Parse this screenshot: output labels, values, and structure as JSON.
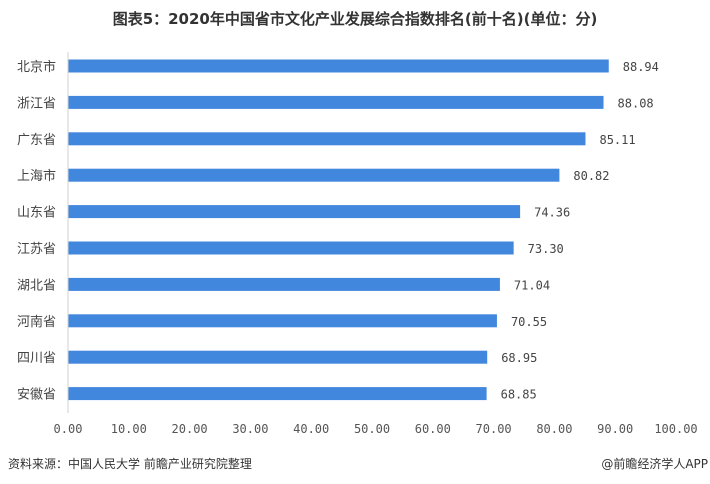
{
  "chart_data": {
    "type": "bar",
    "orientation": "horizontal",
    "title": "图表5：2020年中国省市文化产业发展综合指数排名(前十名)(单位：分)",
    "categories": [
      "北京市",
      "浙江省",
      "广东省",
      "上海市",
      "山东省",
      "江苏省",
      "湖北省",
      "河南省",
      "四川省",
      "安徽省"
    ],
    "values": [
      88.94,
      88.08,
      85.11,
      80.82,
      74.36,
      73.3,
      71.04,
      70.55,
      68.95,
      68.85
    ],
    "value_labels": [
      "88.94",
      "88.08",
      "85.11",
      "80.82",
      "74.36",
      "73.30",
      "71.04",
      "70.55",
      "68.95",
      "68.85"
    ],
    "xlim": [
      0,
      100
    ],
    "xticks": [
      "0.00",
      "10.00",
      "20.00",
      "30.00",
      "40.00",
      "50.00",
      "60.00",
      "70.00",
      "80.00",
      "90.00",
      "100.00"
    ],
    "grid": false,
    "bar_color": "#4287de"
  },
  "footer": {
    "source": "资料来源：中国人民大学 前瞻产业研究院整理",
    "credit": "@前瞻经济学人APP"
  }
}
